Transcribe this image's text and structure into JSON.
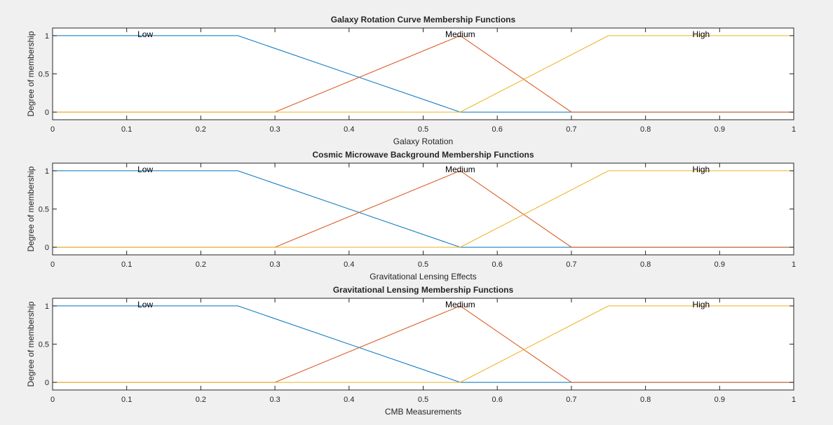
{
  "chart_data": [
    {
      "type": "line",
      "title": "Galaxy Rotation Curve Membership Functions",
      "xlabel": "Galaxy Rotation",
      "ylabel": "Degree of membership",
      "xlim": [
        0,
        1
      ],
      "ylim": [
        -0.1,
        1.1
      ],
      "xticks": [
        "0",
        "0.1",
        "0.2",
        "0.3",
        "0.4",
        "0.5",
        "0.6",
        "0.7",
        "0.8",
        "0.9",
        "1"
      ],
      "yticks": [
        "0",
        "0.5",
        "1"
      ],
      "grid": false,
      "series": [
        {
          "name": "Low",
          "color": "#0072BD",
          "x": [
            0,
            0.25,
            0.55,
            0.7,
            1
          ],
          "y": [
            1,
            1,
            0,
            0,
            0
          ]
        },
        {
          "name": "Medium",
          "color": "#D95319",
          "x": [
            0,
            0.3,
            0.55,
            0.7,
            1
          ],
          "y": [
            0,
            0,
            1,
            0,
            0
          ]
        },
        {
          "name": "High",
          "color": "#EDB120",
          "x": [
            0,
            0.55,
            0.75,
            1
          ],
          "y": [
            0,
            0,
            1,
            1
          ]
        }
      ],
      "annotations": [
        {
          "text": "Low",
          "x": 0.125,
          "y": 1
        },
        {
          "text": "Medium",
          "x": 0.55,
          "y": 1
        },
        {
          "text": "High",
          "x": 0.875,
          "y": 1
        }
      ]
    },
    {
      "type": "line",
      "title": "Cosmic Microwave Background Membership Functions",
      "xlabel": "Gravitational Lensing Effects",
      "ylabel": "Degree of membership",
      "xlim": [
        0,
        1
      ],
      "ylim": [
        -0.1,
        1.1
      ],
      "xticks": [
        "0",
        "0.1",
        "0.2",
        "0.3",
        "0.4",
        "0.5",
        "0.6",
        "0.7",
        "0.8",
        "0.9",
        "1"
      ],
      "yticks": [
        "0",
        "0.5",
        "1"
      ],
      "grid": false,
      "series": [
        {
          "name": "Low",
          "color": "#0072BD",
          "x": [
            0,
            0.25,
            0.55,
            0.7,
            1
          ],
          "y": [
            1,
            1,
            0,
            0,
            0
          ]
        },
        {
          "name": "Medium",
          "color": "#D95319",
          "x": [
            0,
            0.3,
            0.55,
            0.7,
            1
          ],
          "y": [
            0,
            0,
            1,
            0,
            0
          ]
        },
        {
          "name": "High",
          "color": "#EDB120",
          "x": [
            0,
            0.55,
            0.75,
            1
          ],
          "y": [
            0,
            0,
            1,
            1
          ]
        }
      ],
      "annotations": [
        {
          "text": "Low",
          "x": 0.125,
          "y": 1
        },
        {
          "text": "Medium",
          "x": 0.55,
          "y": 1
        },
        {
          "text": "High",
          "x": 0.875,
          "y": 1
        }
      ]
    },
    {
      "type": "line",
      "title": "Gravitational Lensing Membership Functions",
      "xlabel": "CMB Measurements",
      "ylabel": "Degree of membership",
      "xlim": [
        0,
        1
      ],
      "ylim": [
        -0.1,
        1.1
      ],
      "xticks": [
        "0",
        "0.1",
        "0.2",
        "0.3",
        "0.4",
        "0.5",
        "0.6",
        "0.7",
        "0.8",
        "0.9",
        "1"
      ],
      "yticks": [
        "0",
        "0.5",
        "1"
      ],
      "grid": false,
      "series": [
        {
          "name": "Low",
          "color": "#0072BD",
          "x": [
            0,
            0.25,
            0.55,
            0.7,
            1
          ],
          "y": [
            1,
            1,
            0,
            0,
            0
          ]
        },
        {
          "name": "Medium",
          "color": "#D95319",
          "x": [
            0,
            0.3,
            0.55,
            0.7,
            1
          ],
          "y": [
            0,
            0,
            1,
            0,
            0
          ]
        },
        {
          "name": "High",
          "color": "#EDB120",
          "x": [
            0,
            0.55,
            0.75,
            1
          ],
          "y": [
            0,
            0,
            1,
            1
          ]
        }
      ],
      "annotations": [
        {
          "text": "Low",
          "x": 0.125,
          "y": 1
        },
        {
          "text": "Medium",
          "x": 0.55,
          "y": 1
        },
        {
          "text": "High",
          "x": 0.875,
          "y": 1
        }
      ]
    }
  ]
}
